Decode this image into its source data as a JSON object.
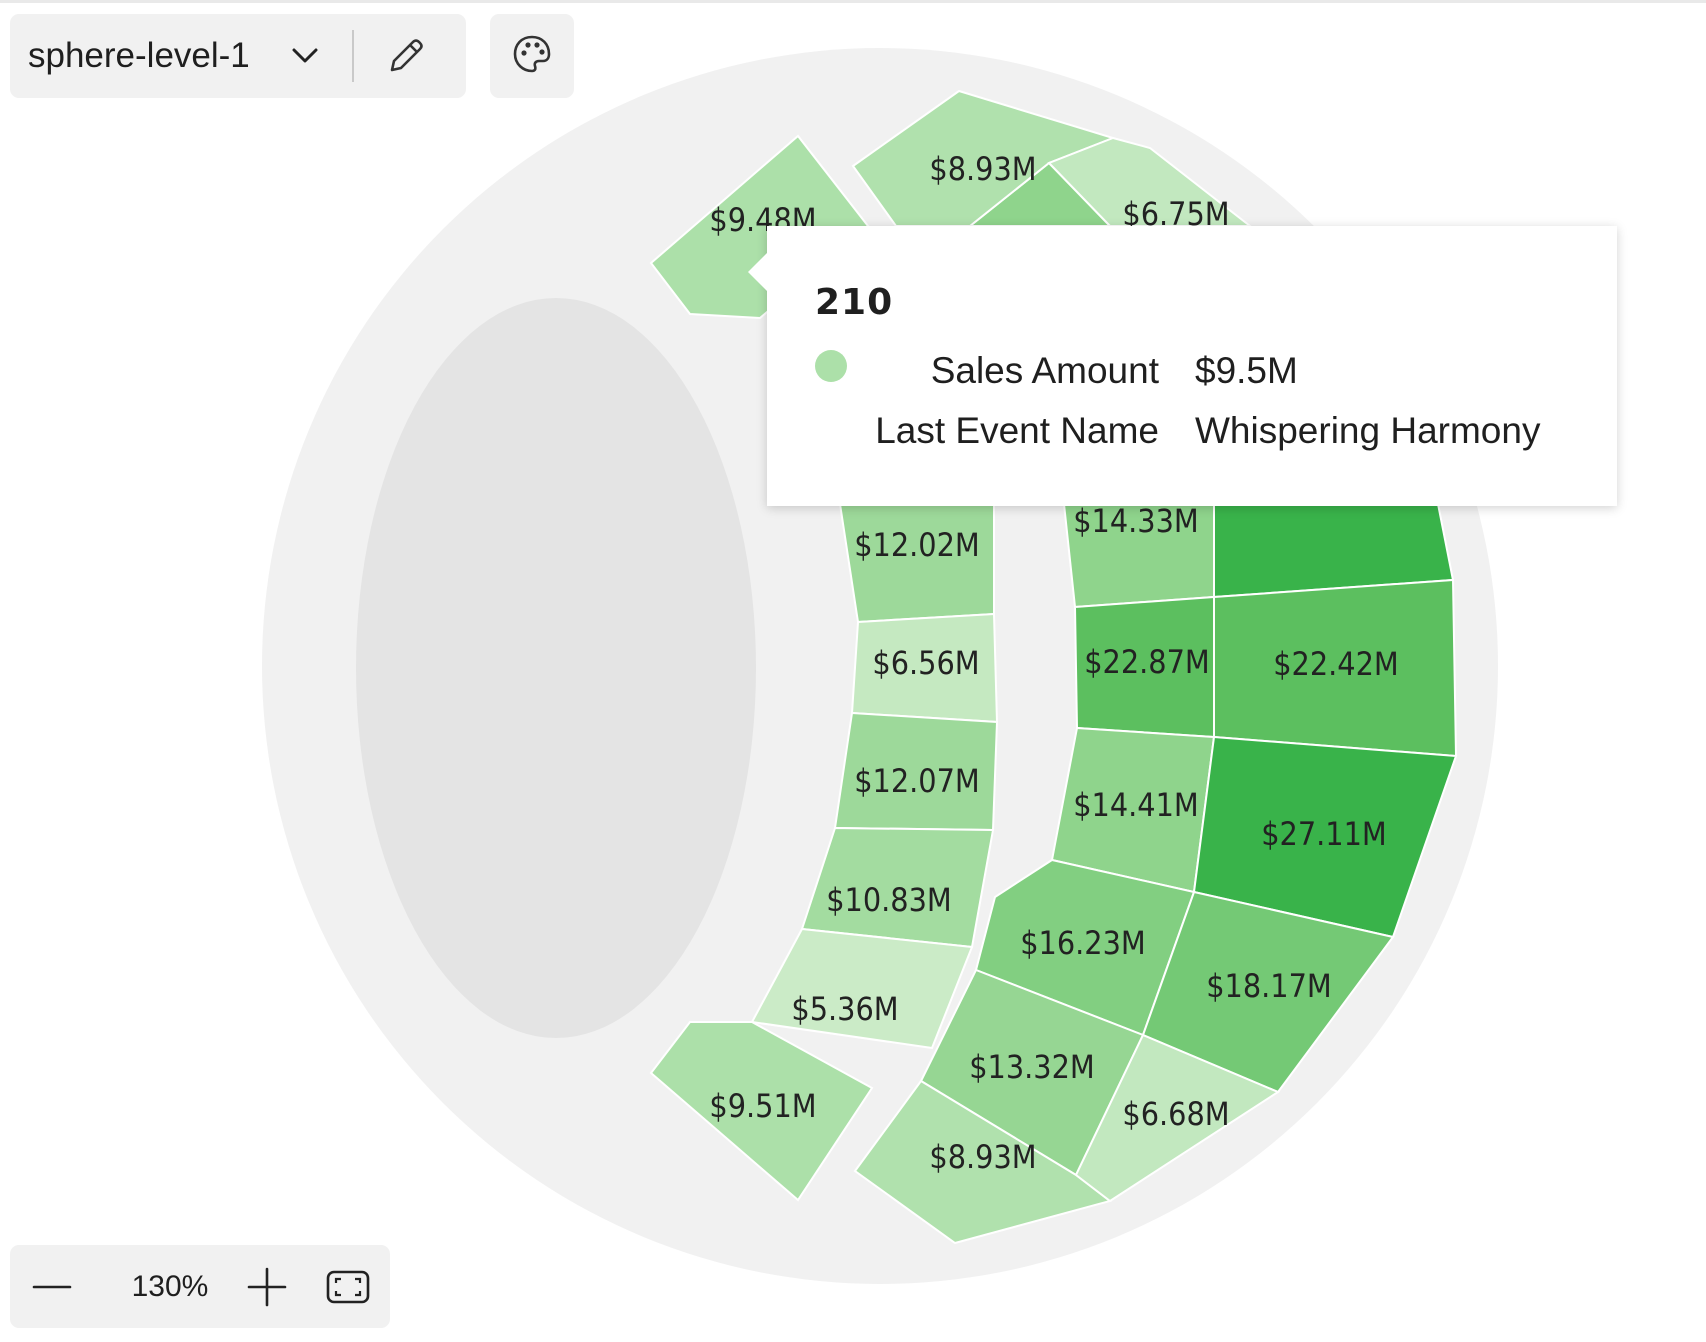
{
  "layer_selector": {
    "selected": "sphere-level-1"
  },
  "toolbar": {
    "edit_icon": "pencil-icon",
    "palette_icon": "palette-icon",
    "dropdown_icon": "chevron-down-icon"
  },
  "tooltip": {
    "title": "210",
    "marker_color": "#ace0a9",
    "rows": [
      {
        "key": "Sales Amount",
        "value": "$9.5M"
      },
      {
        "key": "Last Event Name",
        "value": "Whispering Harmony"
      }
    ]
  },
  "zoom": {
    "level": "130%",
    "minus_icon": "minus-icon",
    "plus_icon": "plus-icon",
    "fit_icon": "fit-screen-icon"
  },
  "seating_map": {
    "type": "venue-map",
    "color_scale": [
      "#cfeccc",
      "#39b34a"
    ],
    "inner_ring": [
      {
        "label": "$9.48M",
        "value": 9.48,
        "color": "#ace0a9"
      },
      {
        "label": "$12.02M",
        "value": 12.02,
        "color": "#9dd99a"
      },
      {
        "label": "$6.56M",
        "value": 6.56,
        "color": "#c5e9c1"
      },
      {
        "label": "$12.07M",
        "value": 12.07,
        "color": "#9dd99a"
      },
      {
        "label": "$10.83M",
        "value": 10.83,
        "color": "#a3dca0"
      },
      {
        "label": "$5.36M",
        "value": 5.36,
        "color": "#cbebc7"
      },
      {
        "label": "$9.51M",
        "value": 9.51,
        "color": "#ace0a9"
      }
    ],
    "outer_middle": [
      {
        "label": "$8.93M",
        "value": 8.93,
        "color": "#b0e1ad"
      },
      {
        "label": "$14.33M",
        "value": 14.33,
        "color": "#8fd48c"
      },
      {
        "label": "$22.87M",
        "value": 22.87,
        "color": "#5cbf5f"
      },
      {
        "label": "$14.41M",
        "value": 14.41,
        "color": "#8fd48c"
      },
      {
        "label": "$16.23M",
        "value": 16.23,
        "color": "#82cf81"
      },
      {
        "label": "$13.32M",
        "value": 13.32,
        "color": "#96d693"
      },
      {
        "label": "$8.93M",
        "value": 8.93,
        "color": "#b0e1ad"
      }
    ],
    "outer_far": [
      {
        "label": "$6.75M",
        "value": 6.75,
        "color": "#c2e8bf"
      },
      {
        "label": "",
        "value": null,
        "color": "#39b34a"
      },
      {
        "label": "$22.42M",
        "value": 22.42,
        "color": "#5cbf5f"
      },
      {
        "label": "$27.11M",
        "value": 27.11,
        "color": "#39b34a"
      },
      {
        "label": "$18.17M",
        "value": 18.17,
        "color": "#74c975"
      },
      {
        "label": "$6.68M",
        "value": 6.68,
        "color": "#c2e8bf"
      }
    ],
    "hidden_top": {
      "color": "#8fd48c"
    }
  }
}
